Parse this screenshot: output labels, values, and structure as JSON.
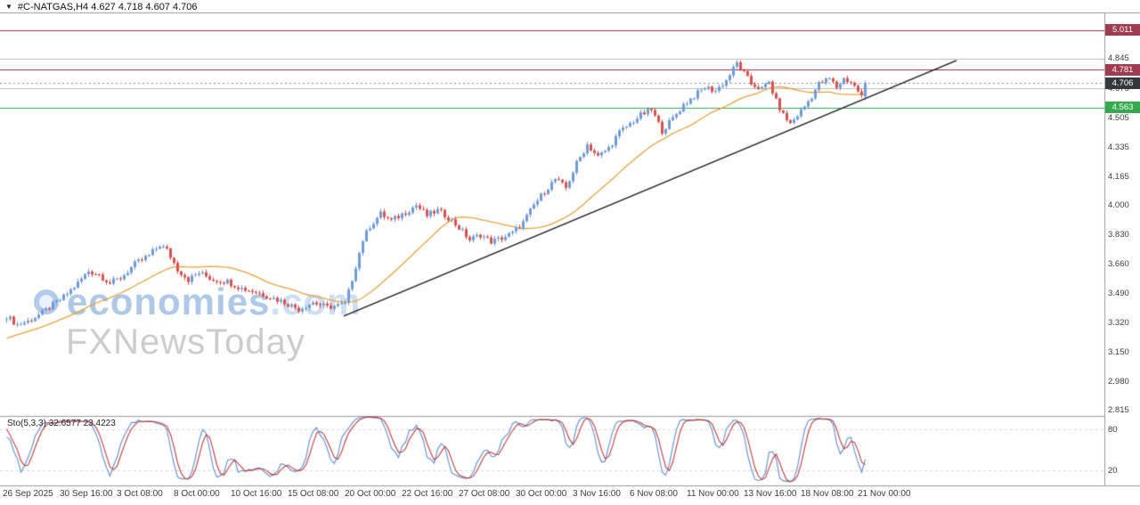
{
  "header": {
    "dropdown_icon": "▼",
    "symbol_line": "#C-NATGAS,H4 4.627 4.718 4.607 4.706"
  },
  "watermark": {
    "brand": "economies",
    "brand_suffix": ".com",
    "subtitle": "FXNewsToday"
  },
  "price_axis": {
    "gridline_labels": [
      "4.845",
      "4.675",
      "4.505",
      "4.335",
      "4.165",
      "4.000",
      "3.830",
      "3.660",
      "3.490",
      "3.320",
      "3.150",
      "2.980",
      "2.815"
    ],
    "badges": [
      {
        "value": "5.011",
        "type": "resistance-level",
        "color": "#a03c4f"
      },
      {
        "value": "4.781",
        "type": "resistance-level",
        "color": "#a03c4f"
      },
      {
        "value": "4.706",
        "type": "current-price",
        "color": "#34373c"
      },
      {
        "value": "4.563",
        "type": "support-level",
        "color": "#35a94e"
      }
    ]
  },
  "indicator_panel": {
    "label": "Sto(5,3,3) 32.6577 23.4223",
    "levels": [
      "80",
      "20"
    ]
  },
  "time_axis": [
    "26 Sep 2025",
    "30 Sep 16:00",
    "3 Oct 08:00",
    "8 Oct 00:00",
    "10 Oct 16:00",
    "15 Oct 08:00",
    "20 Oct 00:00",
    "22 Oct 16:00",
    "27 Oct 08:00",
    "30 Oct 00:00",
    "3 Nov 16:00",
    "6 Nov 08:00",
    "11 Nov 00:00",
    "13 Nov 16:00",
    "18 Nov 08:00",
    "21 Nov 00:00"
  ],
  "chart_data": {
    "type": "candlestick",
    "symbol": "#C-NATGAS",
    "timeframe": "H4",
    "grid": "off",
    "candle_count": 242,
    "label_bar_interval": 16,
    "price_axis_step": 0.17,
    "visible_price_range": [
      2.784,
      5.112
    ],
    "ohlc_current": {
      "open": 4.627,
      "high": 4.718,
      "low": 4.607,
      "close": 4.706
    },
    "up_color": "#6f9bd8",
    "down_color": "#d9504c",
    "horizontal_lines": [
      {
        "price": 5.011,
        "color": "#8f3246",
        "role": "resistance"
      },
      {
        "price": 4.845,
        "color": "#bcbcbc",
        "role": "level"
      },
      {
        "price": 4.781,
        "color": "#8f3246",
        "role": "resistance"
      },
      {
        "price": 4.675,
        "color": "#bcbcbc",
        "role": "level"
      },
      {
        "price": 4.563,
        "color": "#33a84f",
        "role": "support"
      }
    ],
    "current_price_line": {
      "price": 4.706,
      "color": "#8c8c8c"
    },
    "trendline": {
      "from": {
        "index": 95,
        "price": 3.36
      },
      "to": {
        "index": 267,
        "price": 4.835
      },
      "color": "#1a1a1a"
    },
    "ma": {
      "period": 28,
      "color": "#e6a23c"
    },
    "stochastic": {
      "k": 5,
      "slowing": 3,
      "d": 3,
      "levels": [
        80,
        20
      ],
      "main_color": "#5b8fd4",
      "signal_color": "#c23a3a",
      "last_main": 32.6577,
      "last_signal": 23.4223
    },
    "close_waypoints": [
      [
        -40,
        3.02
      ],
      [
        -28,
        3.1
      ],
      [
        -14,
        3.22
      ],
      [
        -4,
        3.33
      ],
      [
        0,
        3.36
      ],
      [
        3,
        3.31
      ],
      [
        6,
        3.33
      ],
      [
        10,
        3.38
      ],
      [
        14,
        3.44
      ],
      [
        16,
        3.47
      ],
      [
        20,
        3.55
      ],
      [
        23,
        3.62
      ],
      [
        26,
        3.6
      ],
      [
        29,
        3.55
      ],
      [
        32,
        3.58
      ],
      [
        36,
        3.66
      ],
      [
        40,
        3.71
      ],
      [
        43,
        3.77
      ],
      [
        45,
        3.74
      ],
      [
        48,
        3.63
      ],
      [
        51,
        3.57
      ],
      [
        54,
        3.61
      ],
      [
        58,
        3.57
      ],
      [
        62,
        3.56
      ],
      [
        66,
        3.52
      ],
      [
        70,
        3.5
      ],
      [
        74,
        3.47
      ],
      [
        78,
        3.44
      ],
      [
        82,
        3.4
      ],
      [
        86,
        3.44
      ],
      [
        90,
        3.41
      ],
      [
        95,
        3.43
      ],
      [
        96,
        3.5
      ],
      [
        98,
        3.65
      ],
      [
        100,
        3.8
      ],
      [
        102,
        3.88
      ],
      [
        105,
        3.95
      ],
      [
        108,
        3.91
      ],
      [
        112,
        3.96
      ],
      [
        115,
        4.0
      ],
      [
        118,
        3.94
      ],
      [
        121,
        3.97
      ],
      [
        124,
        3.93
      ],
      [
        127,
        3.87
      ],
      [
        130,
        3.8
      ],
      [
        133,
        3.83
      ],
      [
        136,
        3.79
      ],
      [
        139,
        3.81
      ],
      [
        142,
        3.84
      ],
      [
        145,
        3.9
      ],
      [
        148,
        4.0
      ],
      [
        151,
        4.08
      ],
      [
        154,
        4.15
      ],
      [
        157,
        4.1
      ],
      [
        160,
        4.24
      ],
      [
        163,
        4.35
      ],
      [
        166,
        4.28
      ],
      [
        169,
        4.33
      ],
      [
        172,
        4.42
      ],
      [
        175,
        4.47
      ],
      [
        178,
        4.52
      ],
      [
        181,
        4.55
      ],
      [
        184,
        4.43
      ],
      [
        187,
        4.5
      ],
      [
        190,
        4.58
      ],
      [
        193,
        4.63
      ],
      [
        196,
        4.68
      ],
      [
        199,
        4.66
      ],
      [
        202,
        4.72
      ],
      [
        205,
        4.82
      ],
      [
        207,
        4.76
      ],
      [
        209,
        4.7
      ],
      [
        212,
        4.67
      ],
      [
        214,
        4.71
      ],
      [
        216,
        4.6
      ],
      [
        218,
        4.52
      ],
      [
        220,
        4.47
      ],
      [
        222,
        4.52
      ],
      [
        224,
        4.57
      ],
      [
        226,
        4.63
      ],
      [
        228,
        4.7
      ],
      [
        231,
        4.73
      ],
      [
        233,
        4.68
      ],
      [
        235,
        4.73
      ],
      [
        237,
        4.71
      ],
      [
        239,
        4.66
      ],
      [
        240,
        4.63
      ],
      [
        241,
        4.71
      ]
    ]
  }
}
